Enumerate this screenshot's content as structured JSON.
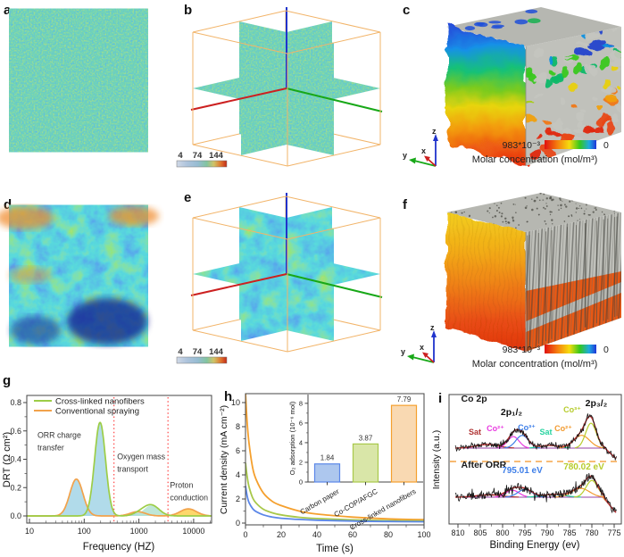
{
  "panels": {
    "a": {
      "label": "a"
    },
    "b": {
      "label": "b",
      "colorbar": {
        "ticks": [
          "4",
          "74",
          "144"
        ]
      }
    },
    "c": {
      "label": "c",
      "colorbar": {
        "max": "983*10⁻³",
        "min": "0",
        "caption": "Molar concentration (mol/m³)"
      },
      "triad": {
        "x": "x",
        "y": "y",
        "z": "z"
      }
    },
    "d": {
      "label": "d"
    },
    "e": {
      "label": "e",
      "colorbar": {
        "ticks": [
          "4",
          "74",
          "144"
        ]
      }
    },
    "f": {
      "label": "f",
      "colorbar": {
        "max": "983*10⁻³",
        "min": "0",
        "caption": "Molar concentration (mol/m³)"
      },
      "triad": {
        "x": "x",
        "y": "y",
        "z": "z"
      }
    },
    "g": {
      "label": "g"
    },
    "h": {
      "label": "h"
    },
    "i": {
      "label": "i"
    }
  },
  "chart_data": [
    {
      "panel": "g",
      "type": "area",
      "xlabel": "Frequency (HZ)",
      "ylabel": "DRT (Ω cm²)",
      "xscale": "log",
      "xlim": [
        10,
        21000
      ],
      "ylim": [
        0,
        0.85
      ],
      "xticks": [
        10,
        100,
        1000,
        10000
      ],
      "yticks": [
        "0.0",
        "0.2",
        "0.4",
        "0.6",
        "0.8"
      ],
      "legend": [
        {
          "label": "Cross-linked nanofibers",
          "color": "#9ccd47"
        },
        {
          "label": "Conventional spraying",
          "color": "#f2a24b"
        }
      ],
      "series": [
        {
          "name": "Cross-linked nanofibers",
          "color": "#9ccd47",
          "peaks": [
            {
              "center": 195,
              "height": 0.66,
              "width": 0.1,
              "fill": "#a9d7e8"
            },
            {
              "center": 1050,
              "height": 0.02,
              "width": 0.12,
              "fill": "#a9d7e8"
            },
            {
              "center": 1700,
              "height": 0.075,
              "width": 0.14,
              "fill": "#b7e3d3"
            }
          ]
        },
        {
          "name": "Conventional spraying",
          "color": "#f2a24b",
          "peaks": [
            {
              "center": 72,
              "height": 0.26,
              "width": 0.12,
              "fill": "#a9d7e8"
            },
            {
              "center": 950,
              "height": 0.03,
              "width": 0.14,
              "fill": "#cfe6c3"
            },
            {
              "center": 8000,
              "height": 0.05,
              "width": 0.15,
              "fill": "#fdd35c"
            }
          ]
        }
      ],
      "dividers": {
        "color": "#ff4646",
        "x": [
          350,
          3400
        ]
      },
      "annotations": [
        {
          "lines": [
            "ORR charge",
            "transfer"
          ],
          "x": 14,
          "y": 0.55
        },
        {
          "lines": [
            "Oxygen mass",
            "transport"
          ],
          "x": 400,
          "y": 0.4
        },
        {
          "lines": [
            "Proton",
            "conduction"
          ],
          "x": 3700,
          "y": 0.2
        }
      ]
    },
    {
      "panel": "h",
      "type": "line",
      "xlabel": "Time (s)",
      "ylabel": "Current density (mA cm⁻²)",
      "xlim": [
        0,
        100
      ],
      "ylim": [
        0,
        11
      ],
      "xticks": [
        0,
        20,
        40,
        60,
        80,
        100
      ],
      "yticks": [
        0,
        2,
        4,
        6,
        8,
        10
      ],
      "series": [
        {
          "name": "Cross-linked nanofibers",
          "color": "#f5a02e",
          "points": [
            [
              0,
              10.8
            ],
            [
              1,
              8.2
            ],
            [
              2,
              6.6
            ],
            [
              4,
              4.6
            ],
            [
              6,
              3.6
            ],
            [
              10,
              2.5
            ],
            [
              15,
              1.8
            ],
            [
              20,
              1.45
            ],
            [
              30,
              1.0
            ],
            [
              40,
              0.75
            ],
            [
              60,
              0.5
            ],
            [
              80,
              0.35
            ],
            [
              100,
              0.28
            ]
          ]
        },
        {
          "name": "Co-COP/AFGC",
          "color": "#a8c84a",
          "points": [
            [
              0,
              5.0
            ],
            [
              1,
              3.8
            ],
            [
              2,
              3.0
            ],
            [
              4,
              2.1
            ],
            [
              6,
              1.65
            ],
            [
              10,
              1.15
            ],
            [
              15,
              0.85
            ],
            [
              20,
              0.68
            ],
            [
              30,
              0.48
            ],
            [
              40,
              0.38
            ],
            [
              60,
              0.27
            ],
            [
              80,
              0.2
            ],
            [
              100,
              0.17
            ]
          ]
        },
        {
          "name": "Carbon paper",
          "color": "#5b87e8",
          "points": [
            [
              0,
              3.1
            ],
            [
              1,
              2.2
            ],
            [
              2,
              1.7
            ],
            [
              4,
              1.2
            ],
            [
              6,
              0.95
            ],
            [
              10,
              0.68
            ],
            [
              15,
              0.5
            ],
            [
              20,
              0.4
            ],
            [
              30,
              0.3
            ],
            [
              40,
              0.24
            ],
            [
              60,
              0.17
            ],
            [
              80,
              0.13
            ],
            [
              100,
              0.11
            ]
          ]
        }
      ],
      "inset": {
        "type": "bar",
        "ylabel": "O₂ adsorption (10⁻⁶ mol)",
        "ylim": [
          0,
          8.8
        ],
        "yticks": [
          0,
          2,
          4,
          6,
          8
        ],
        "categories": [
          "Carbon paper",
          "Co-COP/AFGC",
          "Cross-linked nanofibers"
        ],
        "values": [
          1.84,
          3.87,
          7.79
        ],
        "labels": [
          "1.84",
          "3.87",
          "7.79"
        ],
        "fill": [
          "#adc7ee",
          "#d9e6a8",
          "#f9d9b2"
        ],
        "stroke": [
          "#5b87e8",
          "#a8c84a",
          "#f5a02e"
        ]
      }
    },
    {
      "panel": "i",
      "type": "xps",
      "xlabel": "Binding Energy (ev)",
      "ylabel": "Intensity (a.u.)",
      "xlim": [
        811,
        774
      ],
      "xticks": [
        810,
        805,
        800,
        795,
        790,
        785,
        780,
        775
      ],
      "divider_color": "#f5a64a",
      "spectra": [
        {
          "name": "Co 2p",
          "name_f": 1.53,
          "edge_be": 777.2,
          "edge_k": 0.13,
          "components": [
            {
              "label": "Sat",
              "color": "#b03434",
              "center": 803.5,
              "height": 0.12,
              "width": 2.5
            },
            {
              "label": "Co²⁺",
              "color": "#e83ce0",
              "center": 797.6,
              "height": 0.38,
              "width": 1.3
            },
            {
              "label": "Co³⁺",
              "color": "#3f7fe8",
              "center": 795.6,
              "height": 0.42,
              "width": 1.4
            },
            {
              "label": "Sat",
              "color": "#28d3a0",
              "center": 789.5,
              "height": 0.09,
              "width": 2.0
            },
            {
              "label": "Co²⁺",
              "color": "#f29a2e",
              "center": 782.3,
              "height": 0.42,
              "width": 1.8
            },
            {
              "label": "Co³⁺",
              "color": "#b7cc2d",
              "center": 780.2,
              "height": 0.82,
              "width": 1.2
            }
          ],
          "annotations": [
            {
              "text": "Sat",
              "color": "#b03434",
              "x": 807.6,
              "f": 0.44,
              "anchor": "start"
            },
            {
              "text": "Co²⁺",
              "color": "#e83ce0",
              "x": 801.6,
              "f": 0.56
            },
            {
              "text": "2p₁/₂",
              "color": "#111111",
              "x": 798.0,
              "f": 1.09,
              "fs": 10.5
            },
            {
              "text": "Co³⁺",
              "color": "#3f7fe8",
              "x": 794.6,
              "f": 0.59
            },
            {
              "text": "Sat",
              "color": "#28d3a0",
              "x": 790.3,
              "f": 0.44
            },
            {
              "text": "Co²⁺",
              "color": "#f29a2e",
              "x": 786.4,
              "f": 0.56
            },
            {
              "text": "Co³⁺",
              "color": "#b7cc2d",
              "x": 784.4,
              "f": 1.18
            },
            {
              "text": "2p₃/₂",
              "color": "#111111",
              "x": 779.0,
              "f": 1.38,
              "fs": 10.5
            }
          ]
        },
        {
          "name": "After ORR",
          "name_f": 1.26,
          "edge_be": 777.6,
          "edge_k": 0.22,
          "components": [
            {
              "label": "Sat",
              "color": "#b03434",
              "center": 803.0,
              "height": 0.1,
              "width": 2.8
            },
            {
              "label": "Co²⁺",
              "color": "#e83ce0",
              "center": 797.8,
              "height": 0.3,
              "width": 1.5
            },
            {
              "label": "Co³⁺",
              "color": "#3f7fe8",
              "center": 795.0,
              "height": 0.33,
              "width": 1.6
            },
            {
              "label": "Sat",
              "color": "#28d3a0",
              "center": 788.5,
              "height": 0.12,
              "width": 2.5
            },
            {
              "label": "Co²⁺",
              "color": "#f29a2e",
              "center": 782.5,
              "height": 0.38,
              "width": 2.0
            },
            {
              "label": "Co³⁺",
              "color": "#b7cc2d",
              "center": 780.0,
              "height": 0.72,
              "width": 1.3
            }
          ],
          "annotations": [
            {
              "text": "795.01 eV",
              "color": "#3f7fe8",
              "x": 795.6,
              "f": 1.04,
              "fs": 10
            },
            {
              "text": "780.02 eV",
              "color": "#b7cc2d",
              "x": 781.8,
              "f": 1.19,
              "fs": 10
            }
          ]
        }
      ]
    }
  ]
}
